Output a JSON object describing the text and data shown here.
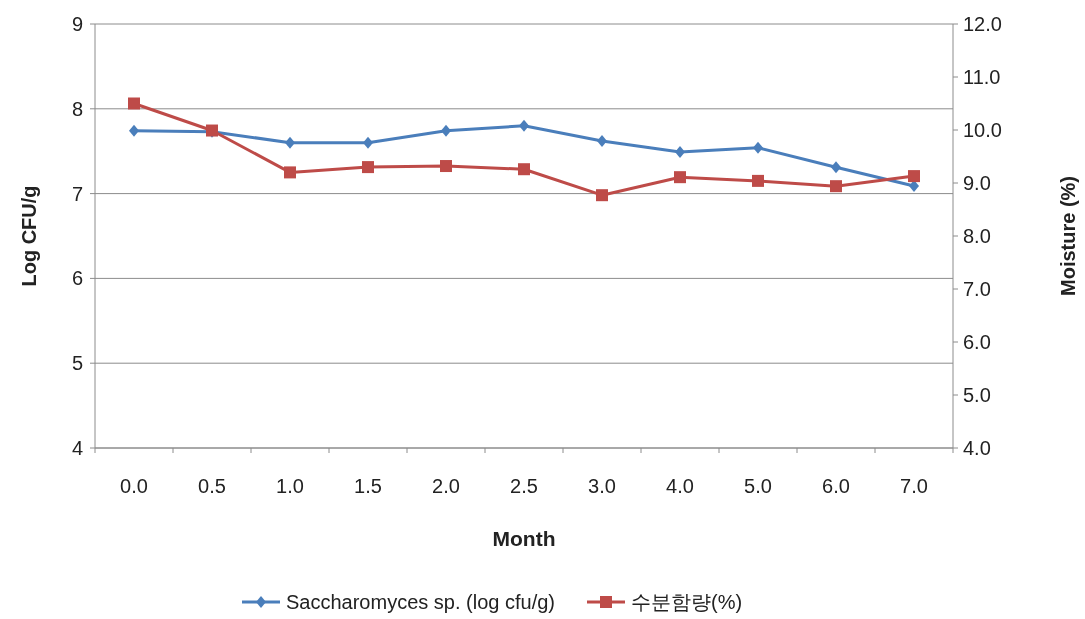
{
  "chart_data": {
    "type": "line",
    "xlabel": "Month",
    "ylabel": "Log CFU/g",
    "y2label": "Moisture (%)",
    "categories": [
      "0.0",
      "0.5",
      "1.0",
      "1.5",
      "2.0",
      "2.5",
      "3.0",
      "4.0",
      "5.0",
      "6.0",
      "7.0"
    ],
    "series": [
      {
        "name": "Saccharomyces sp. (log cfu/g)",
        "color": "#4a7ebb",
        "marker": "diamond",
        "values": [
          7.74,
          7.73,
          7.6,
          7.6,
          7.74,
          7.8,
          7.62,
          7.49,
          7.54,
          7.31,
          7.09
        ]
      },
      {
        "name": "수분함량(%)",
        "color": "#be4b48",
        "marker": "square",
        "axis": "y2",
        "values": [
          10.5,
          9.99,
          9.2,
          9.3,
          9.32,
          9.26,
          8.77,
          9.11,
          9.04,
          8.94,
          9.13
        ]
      }
    ],
    "ylim": [
      4,
      9
    ],
    "yticks": [
      4,
      5,
      6,
      7,
      8,
      9
    ],
    "y2lim": [
      4,
      12
    ],
    "y2ticks": [
      {
        "value": 4,
        "label": "4.0"
      },
      {
        "value": 5,
        "label": "5.0"
      },
      {
        "value": 6,
        "label": "6.0"
      },
      {
        "value": 7,
        "label": "7.0"
      },
      {
        "value": 8,
        "label": "8.0"
      },
      {
        "value": 9,
        "label": "9.0"
      },
      {
        "value": 10,
        "label": "10.0"
      },
      {
        "value": 11,
        "label": "11.0"
      },
      {
        "value": 12,
        "label": "12.0"
      }
    ],
    "grid": "y",
    "legend": "bottom"
  }
}
